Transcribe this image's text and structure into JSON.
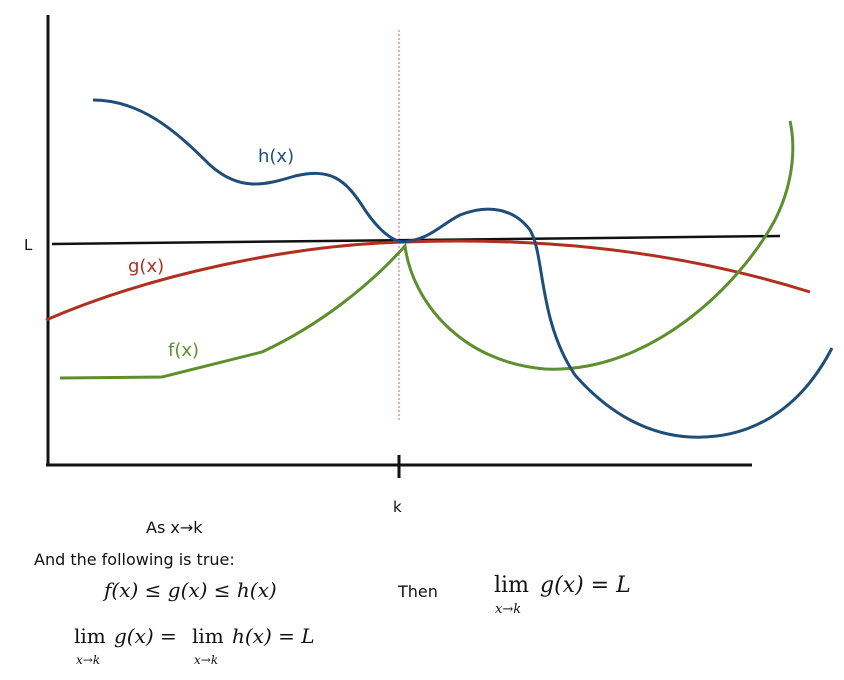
{
  "diagram": {
    "axis_labels": {
      "y_L": "L",
      "x_k": "k"
    },
    "curve_labels": {
      "h": "h(x)",
      "g": "g(x)",
      "f": "f(x)"
    },
    "colors": {
      "h": "#1f4e7a",
      "g": "#b03020",
      "f": "#5e8f2e",
      "line_L": "#111111",
      "axis": "#111111",
      "k_guide": "#e06060",
      "text": "#111111"
    }
  },
  "statement": {
    "line1": "As x→k",
    "line2": "And the following is true:",
    "inequality": "f(x) ≤ g(x) ≤ h(x)",
    "limits_given": {
      "lim": "lim",
      "sub": "x→k",
      "expr1": "g(x) =",
      "expr2": "h(x) = L"
    },
    "then": "Then",
    "conclusion": {
      "lim": "lim",
      "sub": "x→k",
      "expr": "g(x) = L"
    }
  }
}
